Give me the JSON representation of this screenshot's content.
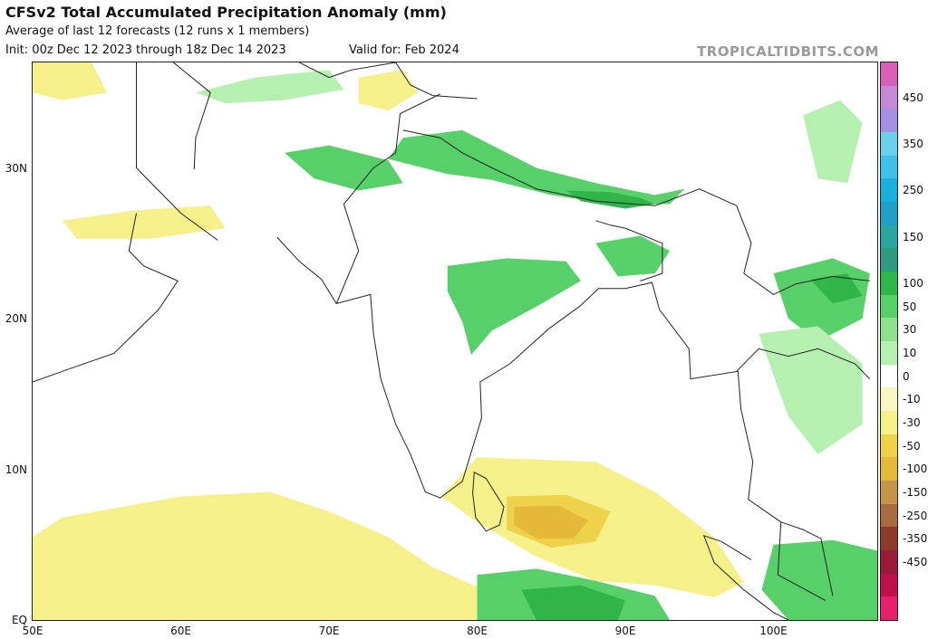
{
  "header": {
    "title": "CFSv2 Total Accumulated Precipitation Anomaly (mm)",
    "subtitle": "Average of last 12 forecasts (12 runs x 1 members)",
    "init": "Init: 00z Dec 12 2023 through 18z Dec 14 2023",
    "valid": "Valid for: Feb 2024",
    "brand": "TROPICALTIDBITS.COM"
  },
  "map": {
    "lon_range": [
      50,
      107
    ],
    "lat_range": [
      0,
      37
    ],
    "lat_labels": [
      {
        "lat": 30,
        "label": "30N"
      },
      {
        "lat": 20,
        "label": "20N"
      },
      {
        "lat": 10,
        "label": "10N"
      },
      {
        "lat": 0,
        "label": "EQ"
      }
    ],
    "lon_labels": [
      {
        "lon": 50,
        "label": "50E"
      },
      {
        "lon": 60,
        "label": "60E"
      },
      {
        "lon": 70,
        "label": "70E"
      },
      {
        "lon": 80,
        "label": "80E"
      },
      {
        "lon": 90,
        "label": "90E"
      },
      {
        "lon": 100,
        "label": "100E"
      }
    ],
    "anomaly_regions": [
      {
        "name": "tibet-wet",
        "color": "#57d06a",
        "points": [
          [
            75,
            32
          ],
          [
            79,
            32.5
          ],
          [
            84,
            30
          ],
          [
            88,
            29
          ],
          [
            92,
            28.2
          ],
          [
            94,
            28.6
          ],
          [
            93,
            27.6
          ],
          [
            89,
            27.6
          ],
          [
            85,
            28.2
          ],
          [
            81,
            29.2
          ],
          [
            78,
            29.6
          ],
          [
            74,
            30.6
          ]
        ]
      },
      {
        "name": "himalaya-core-wet",
        "color": "#2fb548",
        "points": [
          [
            86,
            28.5
          ],
          [
            89,
            28.4
          ],
          [
            91,
            28
          ],
          [
            92,
            27.6
          ],
          [
            90,
            27.3
          ],
          [
            87,
            27.8
          ]
        ]
      },
      {
        "name": "pakistan-wet",
        "color": "#57d06a",
        "points": [
          [
            67,
            31
          ],
          [
            70,
            31.5
          ],
          [
            74,
            30.5
          ],
          [
            75,
            29
          ],
          [
            72,
            28.5
          ],
          [
            69,
            29.3
          ]
        ]
      },
      {
        "name": "afghan-wet",
        "color": "#b6f0b0",
        "points": [
          [
            61,
            35
          ],
          [
            65,
            36
          ],
          [
            70,
            36.5
          ],
          [
            71,
            35.2
          ],
          [
            67,
            34.5
          ],
          [
            63,
            34.3
          ]
        ]
      },
      {
        "name": "central-india-wet",
        "color": "#57d06a",
        "points": [
          [
            78,
            23.5
          ],
          [
            82,
            24
          ],
          [
            86,
            23.8
          ],
          [
            87,
            22.5
          ],
          [
            84,
            20.8
          ],
          [
            81,
            19.2
          ],
          [
            79.6,
            17.6
          ],
          [
            79,
            19.8
          ],
          [
            78,
            21.8
          ]
        ]
      },
      {
        "name": "bengal-wet",
        "color": "#57d06a",
        "points": [
          [
            88,
            25
          ],
          [
            91,
            25.5
          ],
          [
            93,
            24.5
          ],
          [
            92,
            23
          ],
          [
            89.5,
            22.8
          ]
        ]
      },
      {
        "name": "myanmar-wet",
        "color": "#57d06a",
        "points": [
          [
            100,
            23
          ],
          [
            104,
            24
          ],
          [
            106.5,
            23
          ],
          [
            106,
            20
          ],
          [
            103,
            18.5
          ],
          [
            101,
            20
          ]
        ]
      },
      {
        "name": "myanmar-core-wet",
        "color": "#2fb548",
        "points": [
          [
            102.5,
            22.6
          ],
          [
            105,
            23
          ],
          [
            106,
            21.5
          ],
          [
            104,
            21
          ]
        ]
      },
      {
        "name": "indochina-light-wet",
        "color": "#b6f0b0",
        "points": [
          [
            99,
            19
          ],
          [
            103,
            19.5
          ],
          [
            106,
            17
          ],
          [
            106,
            13
          ],
          [
            103,
            11
          ],
          [
            101,
            13.5
          ]
        ]
      },
      {
        "name": "tropical-yellow",
        "color": "#f5f08a",
        "points": [
          [
            52,
            6.8
          ],
          [
            60,
            8.2
          ],
          [
            66,
            8.5
          ],
          [
            70,
            7.2
          ],
          [
            74,
            5.5
          ],
          [
            77,
            3.5
          ],
          [
            80,
            2.2
          ],
          [
            80,
            0
          ],
          [
            50,
            0
          ],
          [
            50,
            5.5
          ]
        ]
      },
      {
        "name": "equator-yellow-east",
        "color": "#f5f08a",
        "points": [
          [
            80,
            10.8
          ],
          [
            88,
            10.5
          ],
          [
            92,
            8.5
          ],
          [
            96,
            5.5
          ],
          [
            98,
            2.5
          ],
          [
            96,
            1.5
          ],
          [
            92,
            2.3
          ],
          [
            88,
            2.6
          ],
          [
            84,
            4.2
          ],
          [
            80,
            6.5
          ],
          [
            77.6,
            8.2
          ]
        ]
      },
      {
        "name": "equator-yellow-core",
        "color": "#eed24a",
        "points": [
          [
            82,
            8.2
          ],
          [
            86,
            8.3
          ],
          [
            89,
            7.2
          ],
          [
            88,
            5.2
          ],
          [
            85,
            4.8
          ],
          [
            82,
            6
          ]
        ]
      },
      {
        "name": "equator-orange-core",
        "color": "#e4b93a",
        "points": [
          [
            82.5,
            7.5
          ],
          [
            85.5,
            7.6
          ],
          [
            87.5,
            6.6
          ],
          [
            86.5,
            5.4
          ],
          [
            84,
            5.4
          ],
          [
            82.5,
            6.3
          ]
        ]
      },
      {
        "name": "equator-wet",
        "color": "#57d06a",
        "points": [
          [
            80,
            3
          ],
          [
            84,
            3.4
          ],
          [
            88,
            2.6
          ],
          [
            92,
            1.6
          ],
          [
            93,
            0
          ],
          [
            80,
            0
          ]
        ]
      },
      {
        "name": "equator-core-wet",
        "color": "#2fb548",
        "points": [
          [
            83,
            2
          ],
          [
            87,
            2.3
          ],
          [
            90,
            1.3
          ],
          [
            89.5,
            0
          ],
          [
            84,
            0
          ]
        ]
      },
      {
        "name": "sumatra-wet",
        "color": "#57d06a",
        "points": [
          [
            100,
            5
          ],
          [
            104,
            5.3
          ],
          [
            107,
            4.6
          ],
          [
            107,
            0
          ],
          [
            101,
            0
          ],
          [
            99.2,
            2
          ]
        ]
      },
      {
        "name": "arabia-yellow",
        "color": "#f5f08a",
        "points": [
          [
            52,
            26.5
          ],
          [
            57,
            27.2
          ],
          [
            62,
            27.5
          ],
          [
            63,
            26
          ],
          [
            58,
            25.3
          ],
          [
            53,
            25.3
          ]
        ]
      },
      {
        "name": "kashmir-yellow",
        "color": "#f5f08a",
        "points": [
          [
            72,
            36
          ],
          [
            75,
            36.5
          ],
          [
            76,
            35
          ],
          [
            74,
            33.8
          ],
          [
            72,
            34.3
          ]
        ]
      },
      {
        "name": "northwest-yellow",
        "color": "#f5f08a",
        "points": [
          [
            50,
            37
          ],
          [
            54,
            37
          ],
          [
            55,
            35
          ],
          [
            52,
            34.5
          ],
          [
            50,
            35
          ]
        ]
      },
      {
        "name": "china-east-wet",
        "color": "#b6f0b0",
        "points": [
          [
            102,
            33.5
          ],
          [
            104.5,
            34.5
          ],
          [
            106,
            33
          ],
          [
            105,
            29
          ],
          [
            103,
            29.3
          ]
        ]
      }
    ],
    "colorbar": [
      {
        "label": "",
        "color": "#d960b8"
      },
      {
        "label": "450",
        "color": "#c48ad6"
      },
      {
        "label": "",
        "color": "#a490e0"
      },
      {
        "label": "350",
        "color": "#6ad0ee"
      },
      {
        "label": "",
        "color": "#3fc0e8"
      },
      {
        "label": "250",
        "color": "#1ab0dd"
      },
      {
        "label": "",
        "color": "#1f9fc8"
      },
      {
        "label": "150",
        "color": "#2aa6a0"
      },
      {
        "label": "",
        "color": "#2f9a80"
      },
      {
        "label": "100",
        "color": "#2fb548"
      },
      {
        "label": "50",
        "color": "#57d06a"
      },
      {
        "label": "30",
        "color": "#8ee08a"
      },
      {
        "label": "10",
        "color": "#b6f0b0"
      },
      {
        "label": "0",
        "color": "#ffffff"
      },
      {
        "label": "-10",
        "color": "#f7f6c0"
      },
      {
        "label": "-30",
        "color": "#f5f08a"
      },
      {
        "label": "-50",
        "color": "#eed24a"
      },
      {
        "label": "-100",
        "color": "#e4b93a"
      },
      {
        "label": "-150",
        "color": "#c6934a"
      },
      {
        "label": "-250",
        "color": "#a86a40"
      },
      {
        "label": "-350",
        "color": "#8c3a2a"
      },
      {
        "label": "-450",
        "color": "#9a1a3a"
      },
      {
        "label": "",
        "color": "#c0104c"
      },
      {
        "label": "",
        "color": "#e6206a"
      }
    ]
  }
}
